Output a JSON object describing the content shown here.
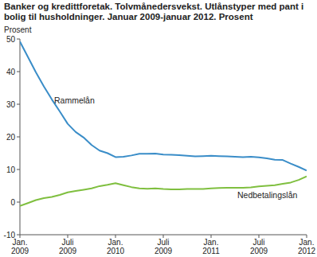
{
  "chart_data": {
    "type": "line",
    "title": "Banker og kredittforetak. Tolvmånedersvekst. Utlånstyper med pant i bolig til husholdninger. Januar 2009-januar 2012. Prosent",
    "y_label": "Prosent",
    "categories": [
      "Jan. 2009",
      null,
      null,
      null,
      null,
      null,
      "Juli 2009",
      null,
      null,
      null,
      null,
      null,
      "Jan. 2010",
      null,
      null,
      null,
      null,
      null,
      "Juli 2009",
      null,
      null,
      null,
      null,
      null,
      "Jan. 2011",
      null,
      null,
      null,
      null,
      null,
      "Juli 2009",
      null,
      null,
      null,
      null,
      null,
      "Jan. 2012"
    ],
    "series": [
      {
        "name": "Rammelån",
        "color": "#3a8dc8",
        "values": [
          49.2,
          44.5,
          39.8,
          35.5,
          31.5,
          27.8,
          24.0,
          21.5,
          19.8,
          17.5,
          15.8,
          15.0,
          13.8,
          13.9,
          14.3,
          14.8,
          14.8,
          14.9,
          14.6,
          14.5,
          14.4,
          14.2,
          14.0,
          14.1,
          14.2,
          14.1,
          14.0,
          13.9,
          13.8,
          13.9,
          13.7,
          13.4,
          13.0,
          12.9,
          11.8,
          10.8,
          9.7
        ]
      },
      {
        "name": "Nedbetalingslån",
        "color": "#7fbf3f",
        "values": [
          -1.2,
          -0.3,
          0.6,
          1.2,
          1.6,
          2.2,
          3.0,
          3.4,
          3.8,
          4.2,
          4.9,
          5.3,
          5.8,
          5.2,
          4.6,
          4.2,
          4.1,
          4.2,
          4.0,
          3.9,
          3.9,
          4.0,
          4.0,
          4.0,
          4.2,
          4.3,
          4.4,
          4.4,
          4.4,
          4.5,
          4.8,
          5.0,
          5.2,
          5.6,
          6.0,
          6.8,
          7.9
        ]
      }
    ],
    "ylim": [
      -10,
      50
    ],
    "yticks": [
      -10,
      0,
      10,
      20,
      30,
      40,
      50
    ],
    "grid": false
  }
}
